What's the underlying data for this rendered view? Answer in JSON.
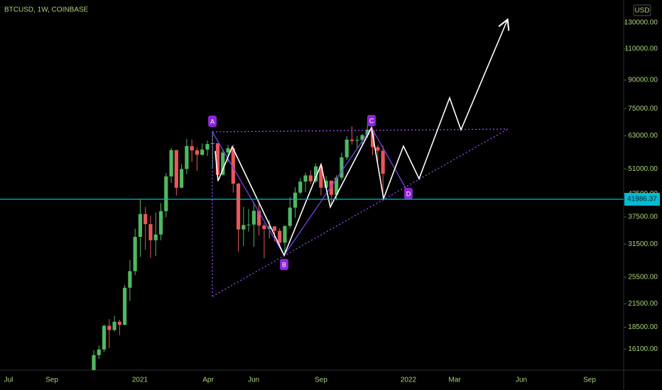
{
  "chart_data": {
    "type": "candlestick",
    "title": "BTCUSD, 1W, COINBASE",
    "currency": "USD",
    "log_scale": true,
    "ylim": [
      14190,
      150300
    ],
    "yticks": [
      {
        "value": 130000,
        "label": "130000.00"
      },
      {
        "value": 110000,
        "label": "110000.00"
      },
      {
        "value": 90000,
        "label": "90000.00"
      },
      {
        "value": 75000,
        "label": "75000.00"
      },
      {
        "value": 63000,
        "label": "63000.00"
      },
      {
        "value": 51000,
        "label": "51000.00"
      },
      {
        "value": 43500,
        "label": "43500.00"
      },
      {
        "value": 37500,
        "label": "37500.00"
      },
      {
        "value": 31500,
        "label": "31500.00"
      },
      {
        "value": 25500,
        "label": "25500.00"
      },
      {
        "value": 21500,
        "label": "21500.00"
      },
      {
        "value": 18500,
        "label": "18500.00"
      },
      {
        "value": 16100,
        "label": "16100.00"
      }
    ],
    "x_labels": [
      "Jul",
      "Sep",
      "2021",
      "Apr",
      "Jun",
      "Sep",
      "2022",
      "Mar",
      "Jun",
      "Sep"
    ],
    "up_color": "#4fb862",
    "down_color": "#e8575a",
    "price_line": 41986.37,
    "price_line_color": "#00bcd4",
    "annotations": [
      "A",
      "B",
      "C",
      "D"
    ],
    "open": [
      13550,
      15480,
      16050,
      18680,
      18180,
      19170,
      18800,
      23830,
      26500,
      33000,
      38200,
      35800,
      32300,
      33500,
      38900,
      48600,
      57500,
      45200,
      50950,
      59000,
      57400,
      55800,
      57700,
      59800,
      60100,
      49100,
      56600,
      58200,
      46400,
      34600,
      35600,
      35700,
      39000,
      35500,
      34700,
      35300,
      34300,
      31800,
      35400,
      39800,
      43800,
      47000,
      48900,
      47100,
      51800,
      45200,
      47300,
      43200,
      48200,
      54900,
      61500,
      61000,
      61300,
      63300,
      65500,
      58600,
      57300
    ],
    "high": [
      15960,
      16490,
      18800,
      19500,
      19920,
      19400,
      24250,
      28420,
      34800,
      41950,
      40000,
      37800,
      38600,
      40950,
      49700,
      58350,
      57500,
      52600,
      61780,
      61500,
      58400,
      60000,
      61200,
      64900,
      60100,
      58000,
      59500,
      59600,
      46600,
      40000,
      39500,
      41300,
      41300,
      36000,
      36700,
      35300,
      34900,
      35400,
      42600,
      45300,
      48100,
      49800,
      50500,
      52900,
      52900,
      48800,
      47300,
      49000,
      56600,
      62900,
      67000,
      62900,
      63800,
      69000,
      66400,
      59500,
      59200
    ],
    "low": [
      13220,
      15100,
      15800,
      16200,
      18000,
      17600,
      18700,
      21900,
      25800,
      29000,
      30400,
      28800,
      29200,
      32300,
      37400,
      46600,
      43000,
      45000,
      49300,
      53300,
      50400,
      55500,
      55400,
      51300,
      47000,
      48800,
      53000,
      43800,
      30000,
      31100,
      34100,
      31000,
      33300,
      28800,
      32700,
      32100,
      31000,
      29300,
      34800,
      37300,
      43300,
      43900,
      46400,
      46600,
      43000,
      44800,
      40600,
      41700,
      47400,
      54000,
      59600,
      58000,
      59000,
      62300,
      55600,
      53300,
      42000
    ],
    "close": [
      15480,
      16050,
      18680,
      18180,
      19170,
      18800,
      23830,
      26500,
      33000,
      38200,
      35800,
      32300,
      33500,
      38900,
      48600,
      57500,
      45200,
      50950,
      59000,
      57400,
      55800,
      57700,
      59800,
      60100,
      49100,
      56600,
      58200,
      46400,
      34600,
      35600,
      35700,
      39000,
      35500,
      34700,
      35300,
      34300,
      31800,
      35400,
      39800,
      43800,
      47000,
      48900,
      47100,
      51800,
      45200,
      47300,
      43200,
      48200,
      54900,
      61500,
      61000,
      61300,
      63300,
      65500,
      58600,
      57300,
      49400
    ]
  }
}
